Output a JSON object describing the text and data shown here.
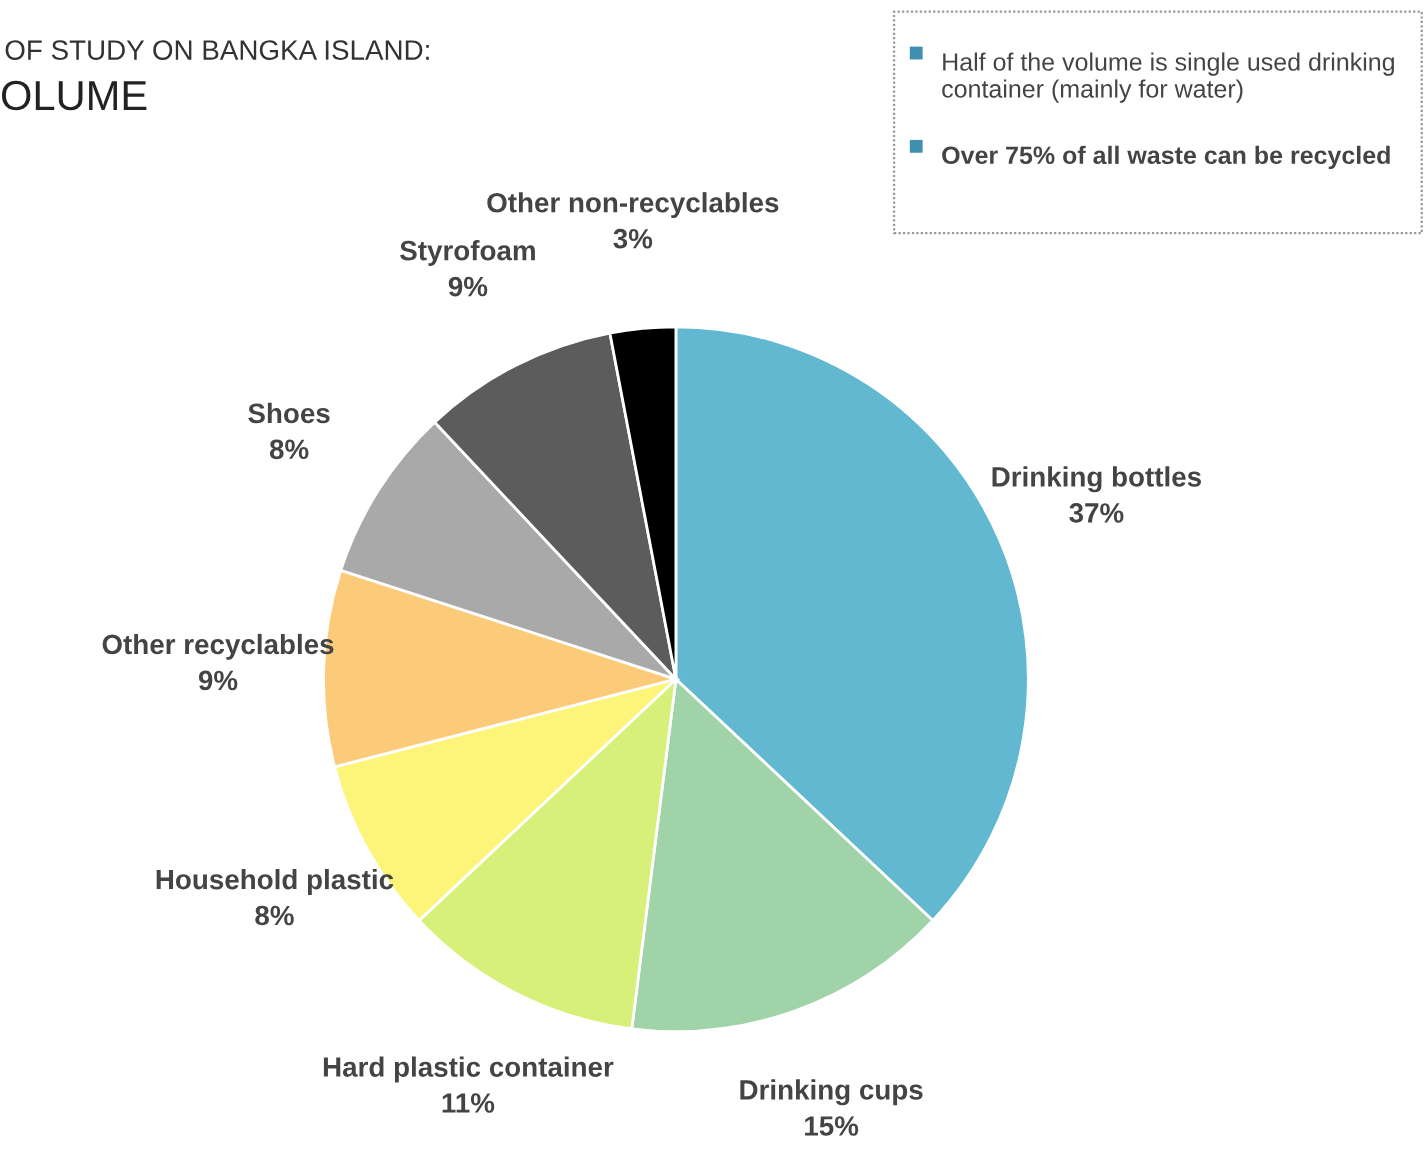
{
  "chart_data": {
    "type": "pie",
    "title": "OF STUDY ON BANGKA ISLAND:",
    "subtitle": "OLUME",
    "categories": [
      "Drinking bottles",
      "Drinking cups",
      "Hard plastic container",
      "Household plastic",
      "Other recyclables",
      "Shoes",
      "Styrofoam",
      "Other non-recyclables"
    ],
    "values": [
      37,
      15,
      11,
      8,
      9,
      8,
      9,
      3
    ],
    "value_labels": [
      "37%",
      "15%",
      "11%",
      "8%",
      "9%",
      "8%",
      "9%",
      "3%"
    ],
    "colors": [
      "#62b8d0",
      "#a0d4a8",
      "#d7f07a",
      "#fcf57a",
      "#fccb7a",
      "#a9a9a9",
      "#5c5c5c",
      "#000000"
    ],
    "annotations": [
      "Half of the volume is single used drinking container (mainly for water)",
      "Over 75% of all waste can be recycled"
    ]
  }
}
